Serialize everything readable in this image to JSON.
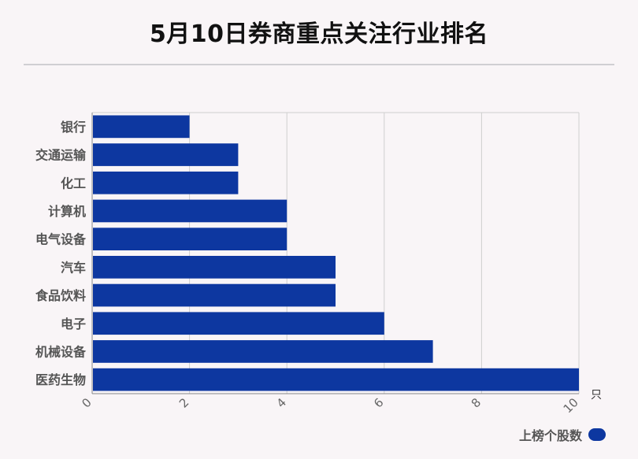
{
  "title": "5月10日券商重点关注行业排名",
  "chart_data": {
    "type": "bar",
    "orientation": "horizontal",
    "categories": [
      "银行",
      "交通运输",
      "化工",
      "计算机",
      "电气设备",
      "汽车",
      "食品饮料",
      "电子",
      "机械设备",
      "医药生物"
    ],
    "series": [
      {
        "name": "上榜个股数",
        "values": [
          2,
          3,
          3,
          4,
          4,
          5,
          5,
          6,
          7,
          10
        ]
      }
    ],
    "xlim": [
      0,
      10
    ],
    "xticks": [
      "0",
      "2",
      "4",
      "6",
      "8",
      "10"
    ],
    "x_unit": "只",
    "grid": true,
    "legend_position": "bottom-right",
    "bar_color": "#0d37a0"
  }
}
